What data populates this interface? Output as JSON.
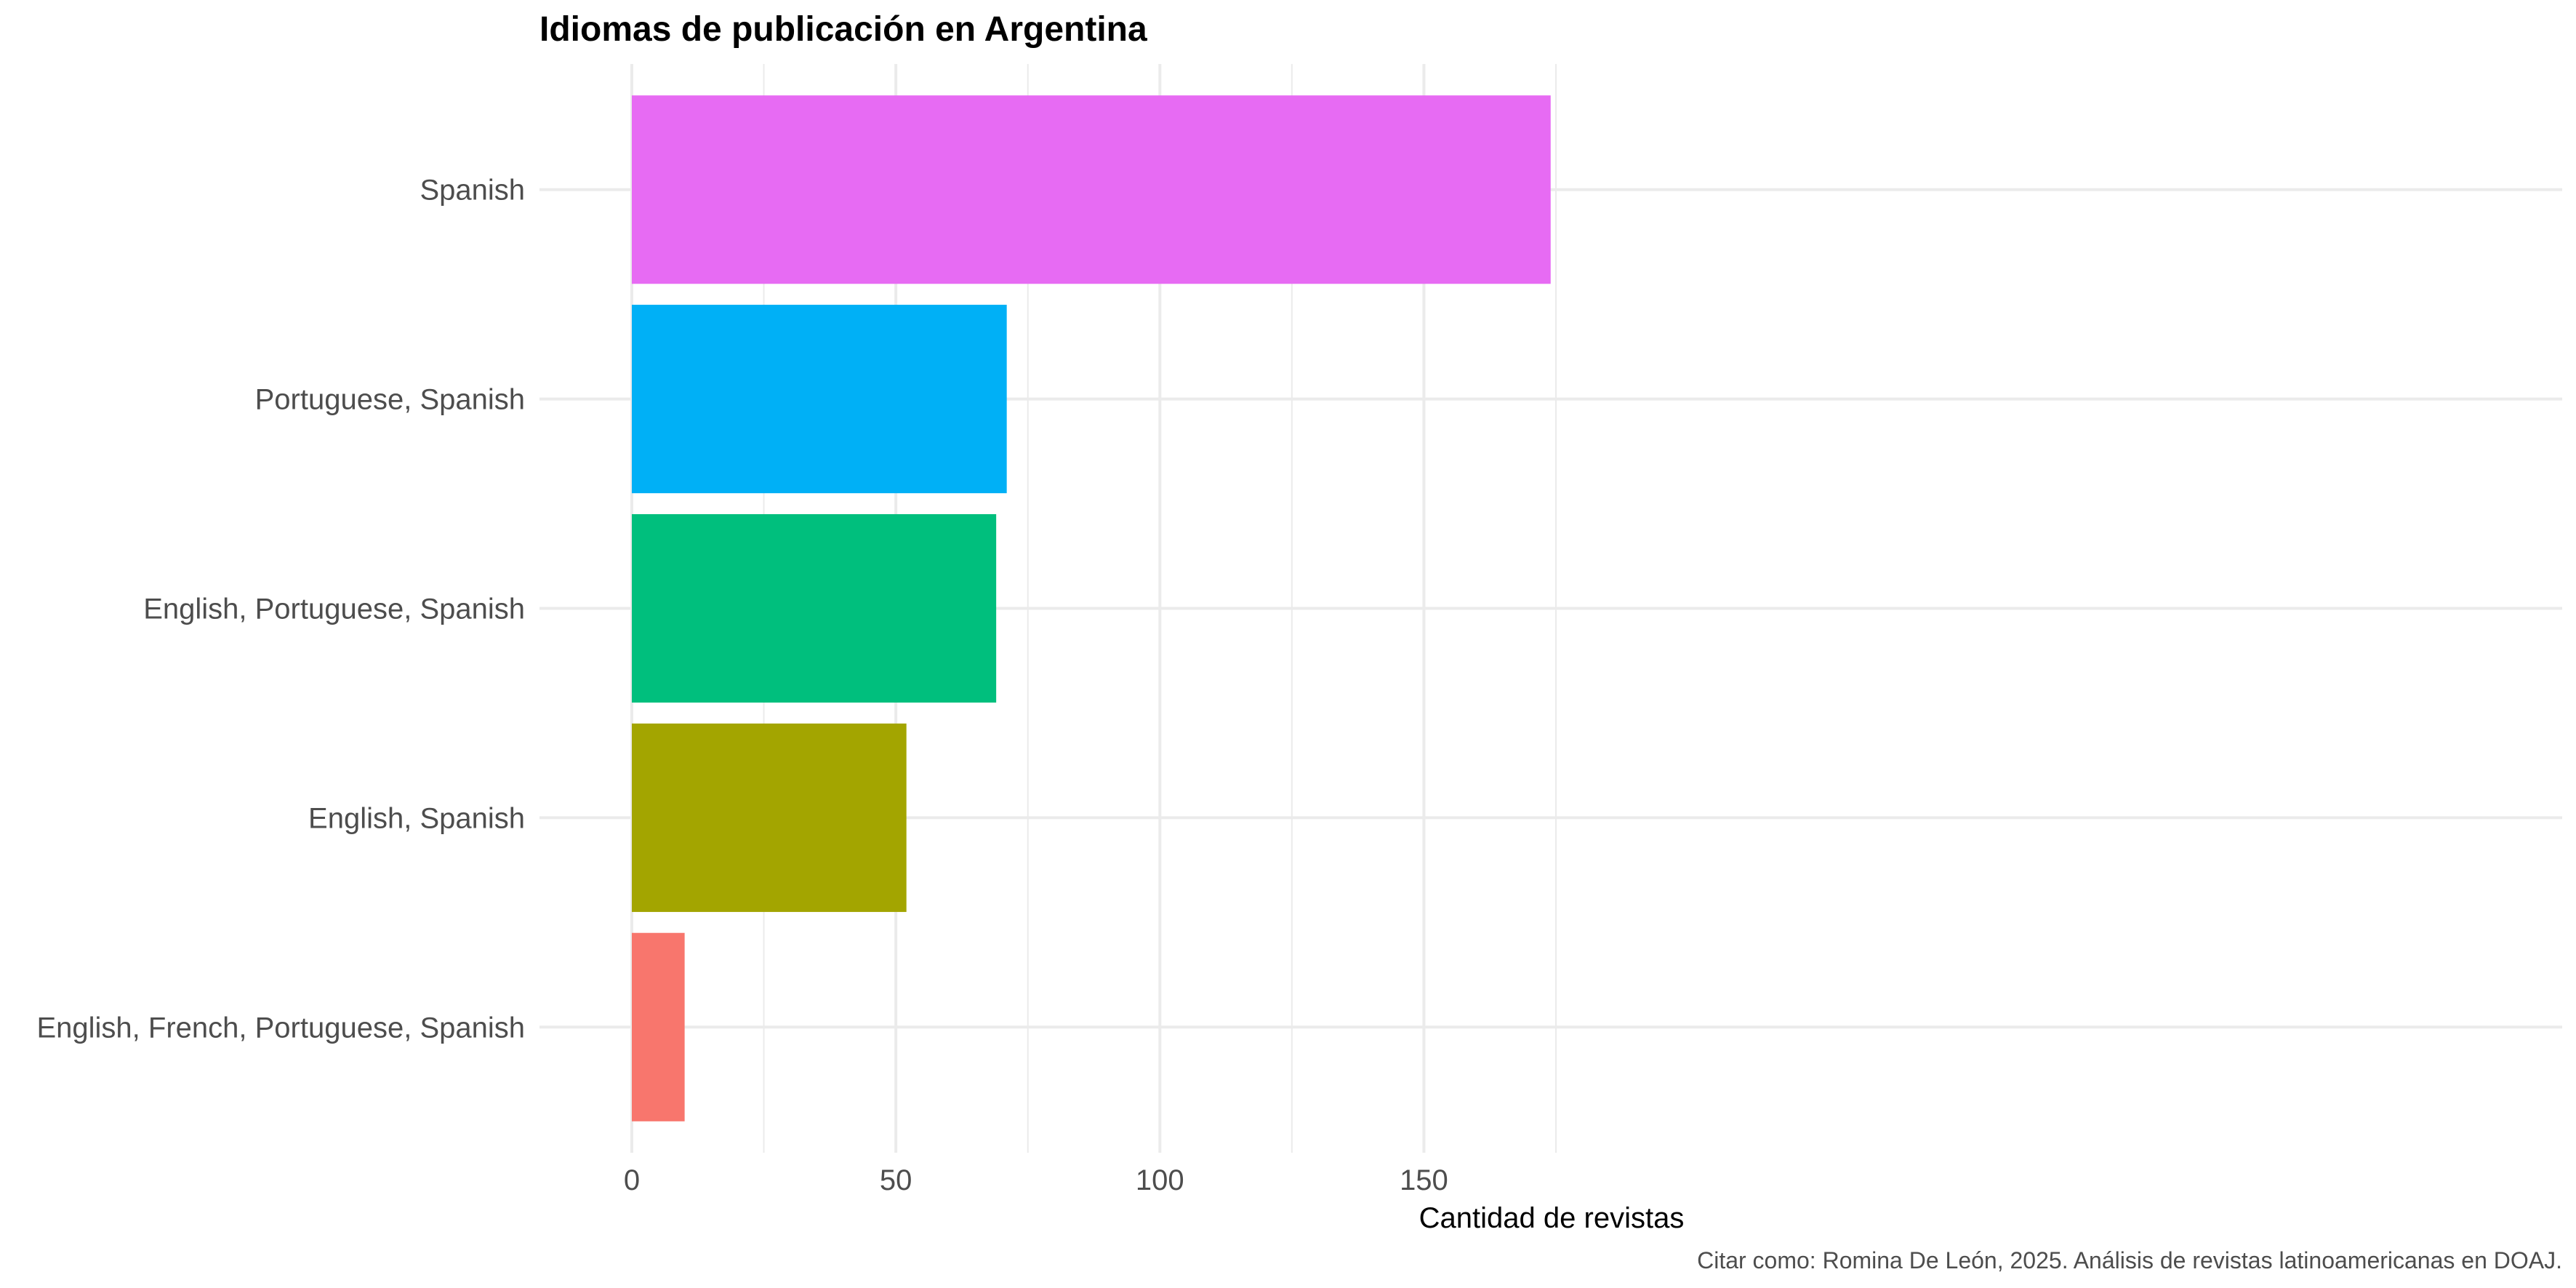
{
  "chart_data": {
    "type": "bar",
    "orientation": "horizontal",
    "title": "Idiomas de publicación en Argentina",
    "xlabel": "Cantidad de revistas",
    "ylabel": "",
    "caption": "Citar como: Romina De León, 2025. Análisis de revistas latinoamericanas en DOAJ.",
    "xlim": [
      0,
      182
    ],
    "xticks": [
      0,
      50,
      100,
      150
    ],
    "grid": true,
    "legend": "none",
    "categories": [
      "Spanish",
      "Portuguese, Spanish",
      "English, Portuguese, Spanish",
      "English, Spanish",
      "English, French, Portuguese, Spanish"
    ],
    "values": [
      174,
      71,
      69,
      52,
      10
    ],
    "colors": [
      "#E76BF3",
      "#00B0F6",
      "#00BF7D",
      "#A3A500",
      "#F8766D"
    ]
  }
}
